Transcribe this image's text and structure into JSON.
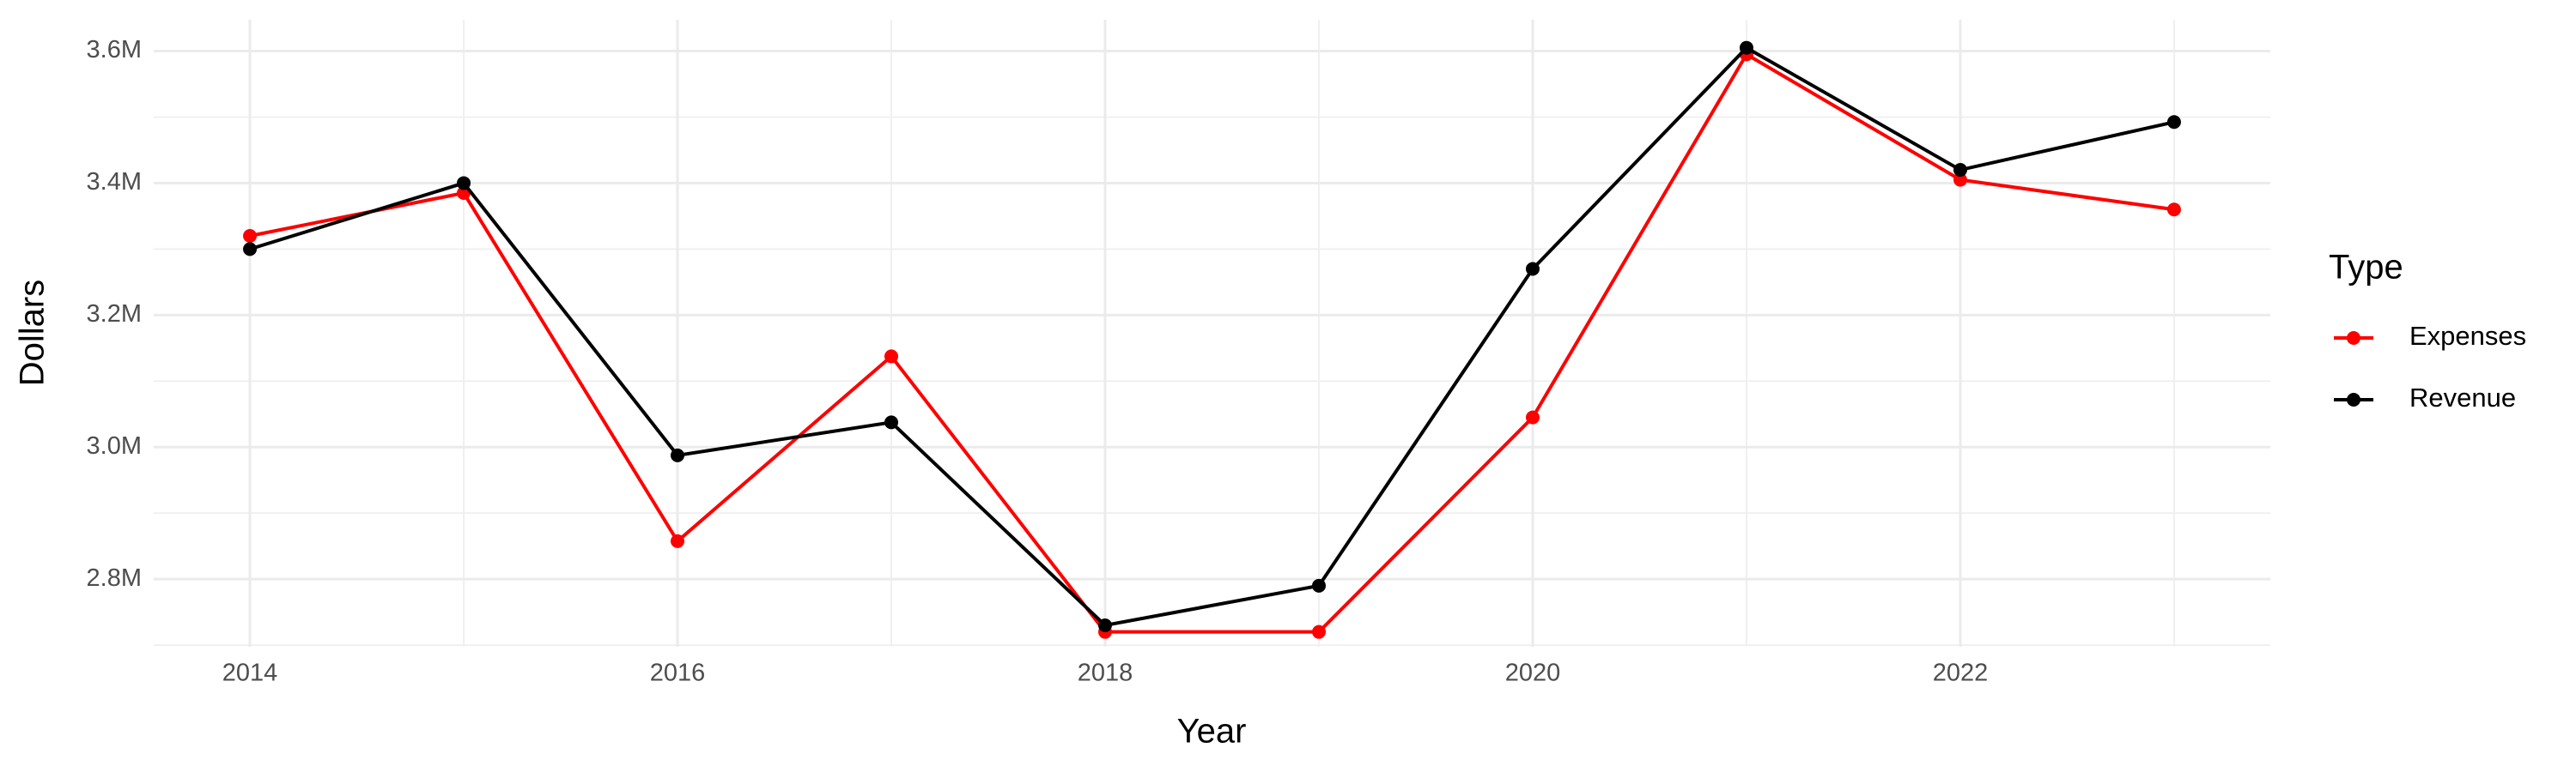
{
  "chart_data": {
    "type": "line",
    "x_label": "Year",
    "y_label": "Dollars",
    "legend_title": "Type",
    "legend": "right",
    "grid": true,
    "x": [
      2014,
      2015,
      2016,
      2017,
      2018,
      2019,
      2020,
      2021,
      2022,
      2023
    ],
    "series": [
      {
        "name": "Expenses",
        "color": "#ff0000",
        "values": [
          3320000,
          3385000,
          2857500,
          3137500,
          2720000,
          2720000,
          3045000,
          3595000,
          3405000,
          3360000
        ]
      },
      {
        "name": "Revenue",
        "color": "#000000",
        "values": [
          3300000,
          3400000,
          2987500,
          3037500,
          2730000,
          2790000,
          3270000,
          3605000,
          3420000,
          3492500
        ]
      }
    ],
    "xlim": [
      2013.55,
      2023.45
    ],
    "xticks": [
      2014,
      2016,
      2018,
      2020,
      2022
    ],
    "ylim": [
      2697500,
      3647500
    ],
    "yticks": [
      {
        "value": 2800000,
        "label": "2.8M"
      },
      {
        "value": 3000000,
        "label": "3.0M"
      },
      {
        "value": 3200000,
        "label": "3.2M"
      },
      {
        "value": 3400000,
        "label": "3.4M"
      },
      {
        "value": 3600000,
        "label": "3.6M"
      }
    ]
  }
}
